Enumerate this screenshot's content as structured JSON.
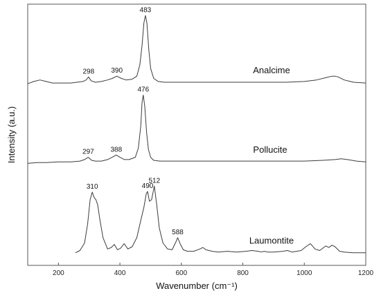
{
  "chart_data": {
    "type": "line",
    "title": "",
    "xlabel": "Wavenumber (cm⁻¹)",
    "ylabel": "Intensity (a.u.)",
    "xlim": [
      100,
      1200
    ],
    "ylim": [
      0,
      3.3
    ],
    "xticks": [
      200,
      400,
      600,
      800,
      1000,
      1200
    ],
    "yticks": [],
    "grid": false,
    "legend": "none",
    "line_color": "#3a3a3a",
    "series": [
      {
        "name": "Analcime",
        "offset": 2.25,
        "x": [
          100,
          120,
          140,
          160,
          180,
          200,
          220,
          240,
          260,
          280,
          290,
          298,
          306,
          320,
          340,
          360,
          375,
          390,
          405,
          420,
          440,
          455,
          465,
          472,
          478,
          483,
          488,
          494,
          500,
          510,
          525,
          545,
          580,
          620,
          700,
          780,
          860,
          940,
          1000,
          1040,
          1070,
          1090,
          1100,
          1110,
          1130,
          1160,
          1200
        ],
        "values": [
          0.0,
          0.03,
          0.05,
          0.03,
          0.01,
          0.01,
          0.01,
          0.01,
          0.02,
          0.03,
          0.05,
          0.09,
          0.04,
          0.02,
          0.03,
          0.05,
          0.07,
          0.1,
          0.07,
          0.05,
          0.06,
          0.1,
          0.25,
          0.5,
          0.8,
          0.9,
          0.8,
          0.45,
          0.2,
          0.07,
          0.03,
          0.02,
          0.02,
          0.02,
          0.02,
          0.02,
          0.02,
          0.02,
          0.03,
          0.05,
          0.08,
          0.1,
          0.1,
          0.09,
          0.05,
          0.02,
          0.01
        ]
      },
      {
        "name": "Pollucite",
        "offset": 1.2,
        "x": [
          100,
          130,
          160,
          200,
          240,
          270,
          285,
          297,
          308,
          320,
          340,
          360,
          375,
          388,
          400,
          415,
          430,
          450,
          460,
          468,
          472,
          476,
          481,
          487,
          493,
          500,
          510,
          530,
          560,
          620,
          700,
          800,
          900,
          1000,
          1060,
          1100,
          1120,
          1140,
          1170,
          1200
        ],
        "values": [
          0.0,
          0.01,
          0.01,
          0.02,
          0.02,
          0.03,
          0.05,
          0.08,
          0.04,
          0.03,
          0.03,
          0.05,
          0.08,
          0.11,
          0.08,
          0.05,
          0.05,
          0.08,
          0.2,
          0.5,
          0.8,
          0.9,
          0.75,
          0.4,
          0.18,
          0.08,
          0.04,
          0.03,
          0.03,
          0.03,
          0.03,
          0.03,
          0.03,
          0.03,
          0.04,
          0.05,
          0.06,
          0.05,
          0.03,
          0.02
        ]
      },
      {
        "name": "Laumontite",
        "offset": 0,
        "x": [
          255,
          270,
          285,
          295,
          303,
          310,
          316,
          322,
          328,
          335,
          345,
          360,
          372,
          382,
          392,
          402,
          414,
          426,
          440,
          455,
          468,
          478,
          486,
          490,
          496,
          503,
          512,
          520,
          528,
          540,
          555,
          570,
          582,
          588,
          596,
          606,
          620,
          640,
          660,
          670,
          680,
          700,
          720,
          750,
          780,
          810,
          830,
          850,
          860,
          870,
          880,
          900,
          930,
          945,
          960,
          990,
          1005,
          1020,
          1035,
          1050,
          1070,
          1080,
          1090,
          1100,
          1115,
          1130,
          1160,
          1200
        ],
        "values": [
          0.02,
          0.05,
          0.15,
          0.4,
          0.72,
          0.82,
          0.75,
          0.72,
          0.65,
          0.45,
          0.22,
          0.07,
          0.09,
          0.13,
          0.06,
          0.08,
          0.14,
          0.07,
          0.1,
          0.22,
          0.45,
          0.62,
          0.8,
          0.83,
          0.7,
          0.72,
          0.9,
          0.65,
          0.35,
          0.15,
          0.07,
          0.06,
          0.16,
          0.22,
          0.14,
          0.06,
          0.04,
          0.04,
          0.07,
          0.09,
          0.06,
          0.04,
          0.03,
          0.04,
          0.03,
          0.04,
          0.05,
          0.04,
          0.03,
          0.04,
          0.03,
          0.03,
          0.04,
          0.05,
          0.03,
          0.05,
          0.1,
          0.14,
          0.07,
          0.05,
          0.11,
          0.09,
          0.12,
          0.1,
          0.04,
          0.03,
          0.02,
          0.02
        ]
      }
    ],
    "peak_labels": [
      {
        "series": "Analcime",
        "x": 298,
        "text": "298"
      },
      {
        "series": "Analcime",
        "x": 390,
        "text": "390"
      },
      {
        "series": "Analcime",
        "x": 483,
        "text": "483"
      },
      {
        "series": "Pollucite",
        "x": 297,
        "text": "297"
      },
      {
        "series": "Pollucite",
        "x": 388,
        "text": "388"
      },
      {
        "series": "Pollucite",
        "x": 476,
        "text": "476"
      },
      {
        "series": "Laumontite",
        "x": 310,
        "text": "310"
      },
      {
        "series": "Laumontite",
        "x": 490,
        "text": "490"
      },
      {
        "series": "Laumontite",
        "x": 512,
        "text": "512"
      },
      {
        "series": "Laumontite",
        "x": 588,
        "text": "588"
      }
    ]
  }
}
